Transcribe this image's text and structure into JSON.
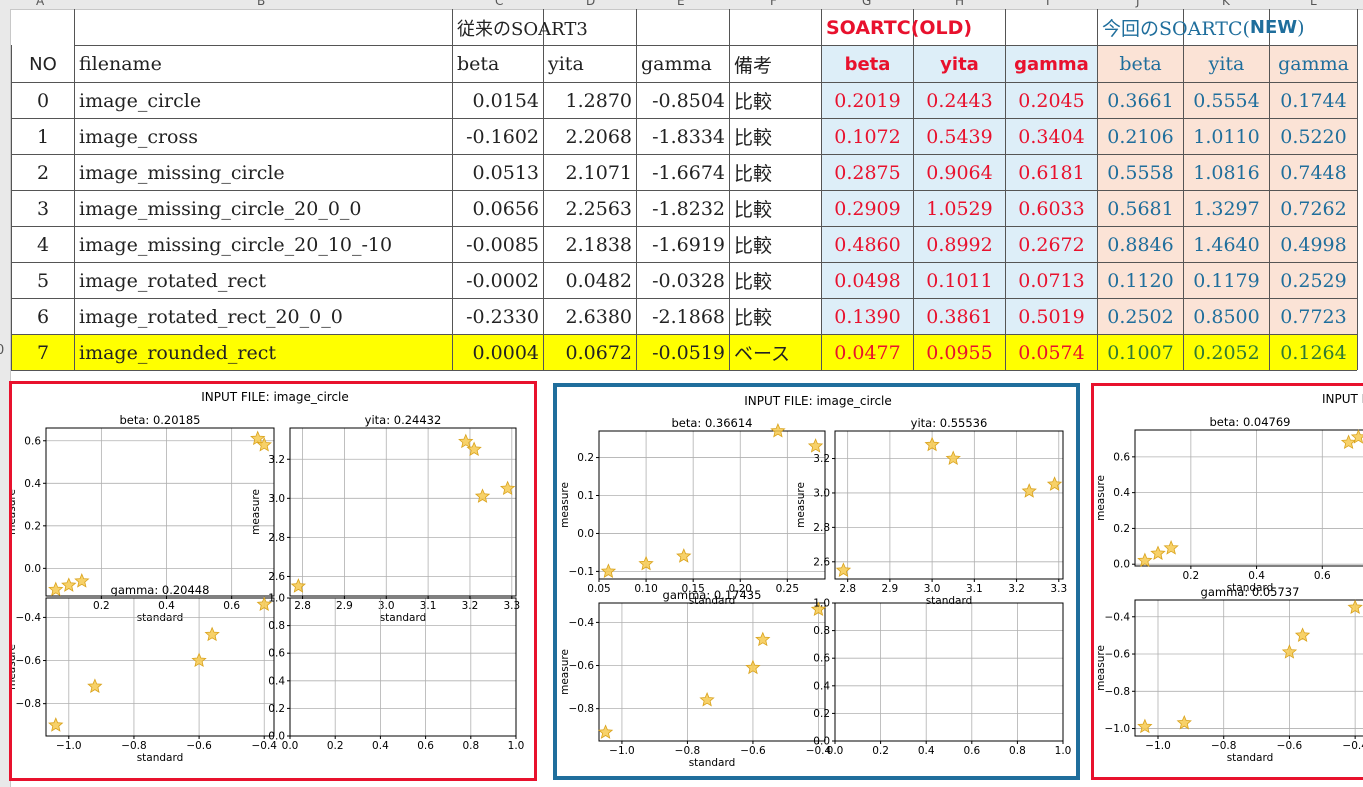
{
  "sheet": {
    "col_letters": [
      "A",
      "B",
      "C",
      "D",
      "E",
      "F",
      "G",
      "H",
      "I",
      "J",
      "K",
      "L"
    ],
    "row_number_partial": "0",
    "group_headers": {
      "old": "従来のSOART3",
      "soartc_old": "SOARTC(OLD)",
      "soartc_new_prefix": "今回のSOARTC(",
      "soartc_new_bold": "NEW",
      "soartc_new_suffix": ")"
    },
    "columns": {
      "no": "NO",
      "filename": "filename",
      "beta": "beta",
      "yita": "yita",
      "gamma": "gamma",
      "note": "備考",
      "old_beta": "beta",
      "old_yita": "yita",
      "old_gamma": "gamma",
      "new_beta": "beta",
      "new_yita": "yita",
      "new_gamma": "gamma"
    },
    "rows": [
      {
        "no": "0",
        "filename": "image_circle",
        "beta": "0.0154",
        "yita": "1.2870",
        "gamma": "-0.8504",
        "note": "比較",
        "ob": "0.2019",
        "oy": "0.2443",
        "og": "0.2045",
        "nb": "0.3661",
        "ny": "0.5554",
        "ng": "0.1744"
      },
      {
        "no": "1",
        "filename": "image_cross",
        "beta": "-0.1602",
        "yita": "2.2068",
        "gamma": "-1.8334",
        "note": "比較",
        "ob": "0.1072",
        "oy": "0.5439",
        "og": "0.3404",
        "nb": "0.2106",
        "ny": "1.0110",
        "ng": "0.5220"
      },
      {
        "no": "2",
        "filename": "image_missing_circle",
        "beta": "0.0513",
        "yita": "2.1071",
        "gamma": "-1.6674",
        "note": "比較",
        "ob": "0.2875",
        "oy": "0.9064",
        "og": "0.6181",
        "nb": "0.5558",
        "ny": "1.0816",
        "ng": "0.7448"
      },
      {
        "no": "3",
        "filename": "image_missing_circle_20_0_0",
        "beta": "0.0656",
        "yita": "2.2563",
        "gamma": "-1.8232",
        "note": "比較",
        "ob": "0.2909",
        "oy": "1.0529",
        "og": "0.6033",
        "nb": "0.5681",
        "ny": "1.3297",
        "ng": "0.7262"
      },
      {
        "no": "4",
        "filename": "image_missing_circle_20_10_-10",
        "beta": "-0.0085",
        "yita": "2.1838",
        "gamma": "-1.6919",
        "note": "比較",
        "ob": "0.4860",
        "oy": "0.8992",
        "og": "0.2672",
        "nb": "0.8846",
        "ny": "1.4640",
        "ng": "0.4998"
      },
      {
        "no": "5",
        "filename": "image_rotated_rect",
        "beta": "-0.0002",
        "yita": "0.0482",
        "gamma": "-0.0328",
        "note": "比較",
        "ob": "0.0498",
        "oy": "0.1011",
        "og": "0.0713",
        "nb": "0.1120",
        "ny": "0.1179",
        "ng": "0.2529"
      },
      {
        "no": "6",
        "filename": "image_rotated_rect_20_0_0",
        "beta": "-0.2330",
        "yita": "2.6380",
        "gamma": "-2.1868",
        "note": "比較",
        "ob": "0.1390",
        "oy": "0.3861",
        "og": "0.5019",
        "nb": "0.2502",
        "ny": "0.8500",
        "ng": "0.7723"
      },
      {
        "no": "7",
        "filename": "image_rounded_rect",
        "beta": "0.0004",
        "yita": "0.0672",
        "gamma": "-0.0519",
        "note": "ベース",
        "ob": "0.0477",
        "oy": "0.0955",
        "og": "0.0574",
        "nb": "0.1007",
        "ny": "0.2052",
        "ng": "0.1264"
      }
    ]
  },
  "colors": {
    "old_fill": "#ddeef8",
    "new_fill": "#fbe3d6",
    "highlight": "#ffff00",
    "red_text": "#e8112d",
    "blue_text": "#1f6e9c",
    "panel1_border": "#e8112d",
    "panel2_border": "#1f6e9c",
    "panel3_border": "#e8112d",
    "star": "#f6c94f",
    "star_edge": "#d9a21b"
  },
  "chart_data": [
    {
      "panel": "red-left",
      "suptitle": "INPUT FILE: image_circle",
      "subplots": [
        {
          "type": "scatter",
          "title": "beta: 0.20185",
          "xlabel": "standard",
          "ylabel": "measure",
          "xlim": [
            0.03,
            0.73
          ],
          "ylim": [
            -0.13,
            0.66
          ],
          "xticks": [
            0.2,
            0.4,
            0.6
          ],
          "yticks": [
            0.0,
            0.2,
            0.4,
            0.6
          ],
          "points": [
            [
              0.06,
              -0.1
            ],
            [
              0.1,
              -0.08
            ],
            [
              0.14,
              -0.06
            ],
            [
              0.68,
              0.61
            ],
            [
              0.7,
              0.58
            ]
          ]
        },
        {
          "type": "scatter",
          "title": "yita: 0.24432",
          "xlabel": "standard",
          "ylabel": "measure",
          "xlim": [
            2.77,
            3.31
          ],
          "ylim": [
            2.5,
            3.36
          ],
          "xticks": [
            2.8,
            2.9,
            3.0,
            3.1,
            3.2,
            3.3
          ],
          "yticks": [
            2.6,
            2.8,
            3.0,
            3.2
          ],
          "points": [
            [
              2.79,
              2.55
            ],
            [
              3.19,
              3.29
            ],
            [
              3.21,
              3.25
            ],
            [
              3.23,
              3.01
            ],
            [
              3.29,
              3.05
            ]
          ]
        },
        {
          "type": "scatter",
          "title": "gamma: 0.20448",
          "xlabel": "standard",
          "ylabel": "measure",
          "xlim": [
            -1.07,
            -0.37
          ],
          "ylim": [
            -0.95,
            -0.31
          ],
          "xticks": [
            -1.0,
            -0.8,
            -0.6,
            -0.4
          ],
          "yticks": [
            -0.8,
            -0.6,
            -0.4
          ],
          "points": [
            [
              -1.04,
              -0.9
            ],
            [
              -0.92,
              -0.72
            ],
            [
              -0.6,
              -0.6
            ],
            [
              -0.56,
              -0.48
            ],
            [
              -0.4,
              -0.34
            ]
          ]
        },
        {
          "type": "scatter",
          "title": "",
          "xlabel": "",
          "ylabel": "",
          "xlim": [
            0,
            1
          ],
          "ylim": [
            0,
            1
          ],
          "xticks": [
            0.0,
            0.2,
            0.4,
            0.6,
            0.8,
            1.0
          ],
          "yticks": [
            0.0,
            0.2,
            0.4,
            0.6,
            0.8,
            1.0
          ],
          "points": []
        }
      ]
    },
    {
      "panel": "blue-middle",
      "suptitle": "INPUT FILE: image_circle",
      "subplots": [
        {
          "type": "scatter",
          "title": "beta: 0.36614",
          "xlabel": "standard",
          "ylabel": "measure",
          "xlim": [
            0.05,
            0.29
          ],
          "ylim": [
            -0.12,
            0.27
          ],
          "xticks": [
            0.05,
            0.1,
            0.15,
            0.2,
            0.25
          ],
          "yticks": [
            -0.1,
            0.0,
            0.1,
            0.2
          ],
          "points": [
            [
              0.06,
              -0.1
            ],
            [
              0.1,
              -0.08
            ],
            [
              0.14,
              -0.06
            ],
            [
              0.24,
              0.27
            ],
            [
              0.28,
              0.23
            ]
          ]
        },
        {
          "type": "scatter",
          "title": "yita: 0.55536",
          "xlabel": "standard",
          "ylabel": "measure",
          "xlim": [
            2.77,
            3.31
          ],
          "ylim": [
            2.5,
            3.36
          ],
          "xticks": [
            2.8,
            2.9,
            3.0,
            3.1,
            3.2,
            3.3
          ],
          "yticks": [
            2.6,
            2.8,
            3.0,
            3.2
          ],
          "points": [
            [
              2.79,
              2.55
            ],
            [
              3.0,
              3.28
            ],
            [
              3.05,
              3.2
            ],
            [
              3.23,
              3.01
            ],
            [
              3.29,
              3.05
            ]
          ]
        },
        {
          "type": "scatter",
          "title": "gamma: 0.17435",
          "xlabel": "standard",
          "ylabel": "measure",
          "xlim": [
            -1.07,
            -0.38
          ],
          "ylim": [
            -0.95,
            -0.31
          ],
          "xticks": [
            -1.0,
            -0.8,
            -0.6,
            -0.4
          ],
          "yticks": [
            -0.8,
            -0.6,
            -0.4
          ],
          "points": [
            [
              -1.05,
              -0.91
            ],
            [
              -0.74,
              -0.76
            ],
            [
              -0.6,
              -0.61
            ],
            [
              -0.57,
              -0.48
            ],
            [
              -0.4,
              -0.34
            ]
          ]
        },
        {
          "type": "scatter",
          "title": "",
          "xlabel": "",
          "ylabel": "",
          "xlim": [
            0,
            1
          ],
          "ylim": [
            0,
            1
          ],
          "xticks": [
            0.0,
            0.2,
            0.4,
            0.6,
            0.8,
            1.0
          ],
          "yticks": [
            0.0,
            0.2,
            0.4,
            0.6,
            0.8,
            1.0
          ],
          "points": []
        }
      ]
    },
    {
      "panel": "red-right",
      "suptitle": "INPUT FILE: ima",
      "subplots": [
        {
          "type": "scatter",
          "title": "beta: 0.04769",
          "xlabel": "standard",
          "ylabel": "measure",
          "xlim": [
            0.03,
            0.73
          ],
          "ylim": [
            -0.01,
            0.75
          ],
          "xticks": [
            0.2,
            0.4,
            0.6
          ],
          "yticks": [
            0.0,
            0.2,
            0.4,
            0.6
          ],
          "points": [
            [
              0.06,
              0.02
            ],
            [
              0.1,
              0.06
            ],
            [
              0.14,
              0.09
            ],
            [
              0.68,
              0.68
            ],
            [
              0.71,
              0.71
            ]
          ]
        },
        {
          "type": "scatter",
          "title": "gamma: 0.05737",
          "xlabel": "standard",
          "ylabel": "measure",
          "xlim": [
            -1.07,
            -0.37
          ],
          "ylim": [
            -1.04,
            -0.31
          ],
          "xticks": [
            -1.0,
            -0.8,
            -0.6,
            -0.4
          ],
          "yticks": [
            -1.0,
            -0.8,
            -0.6,
            -0.4
          ],
          "points": [
            [
              -1.04,
              -0.99
            ],
            [
              -0.92,
              -0.97
            ],
            [
              -0.6,
              -0.59
            ],
            [
              -0.56,
              -0.5
            ],
            [
              -0.4,
              -0.35
            ]
          ]
        }
      ]
    }
  ]
}
